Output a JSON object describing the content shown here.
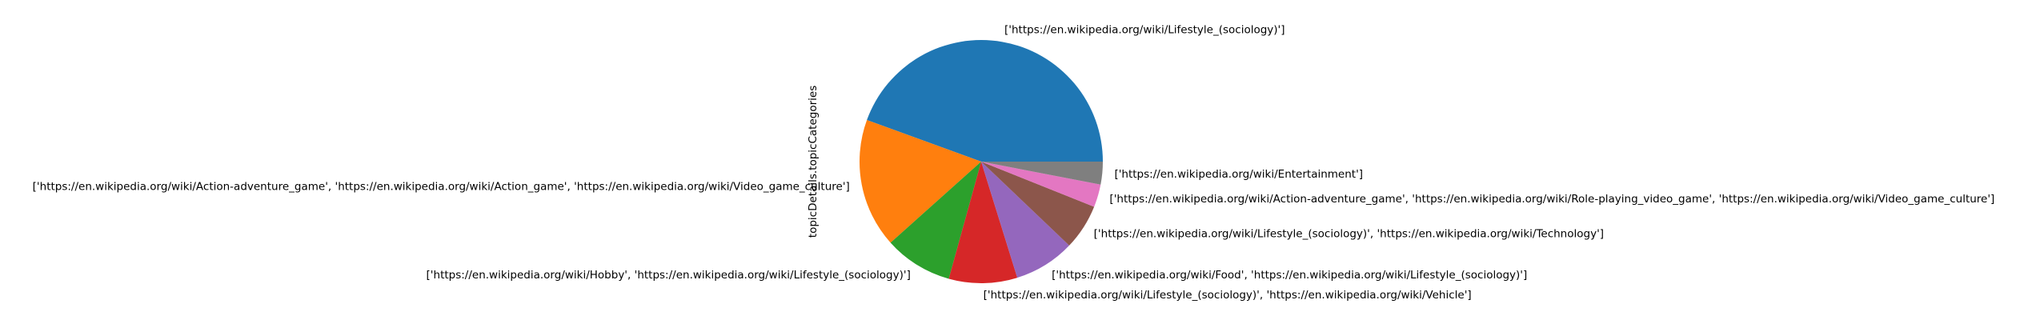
{
  "chart_data": {
    "type": "pie",
    "ylabel": "topicDetails.topicCategories",
    "start_angle_deg": 0,
    "direction": "counterclockwise",
    "slices": [
      {
        "label": "['https://en.wikipedia.org/wiki/Lifestyle_(sociology)']",
        "value": 44,
        "color": "#1f77b4"
      },
      {
        "label": "['https://en.wikipedia.org/wiki/Action-adventure_game', 'https://en.wikipedia.org/wiki/Action_game', 'https://en.wikipedia.org/wiki/Video_game_culture']",
        "value": 17,
        "color": "#ff7f0e"
      },
      {
        "label": "['https://en.wikipedia.org/wiki/Hobby', 'https://en.wikipedia.org/wiki/Lifestyle_(sociology)']",
        "value": 9,
        "color": "#2ca02c"
      },
      {
        "label": "['https://en.wikipedia.org/wiki/Lifestyle_(sociology)', 'https://en.wikipedia.org/wiki/Vehicle']",
        "value": 9,
        "color": "#d62728"
      },
      {
        "label": "['https://en.wikipedia.org/wiki/Food', 'https://en.wikipedia.org/wiki/Lifestyle_(sociology)']",
        "value": 8,
        "color": "#9467bd"
      },
      {
        "label": "['https://en.wikipedia.org/wiki/Lifestyle_(sociology)', 'https://en.wikipedia.org/wiki/Technology']",
        "value": 6,
        "color": "#8c564b"
      },
      {
        "label": "['https://en.wikipedia.org/wiki/Action-adventure_game', 'https://en.wikipedia.org/wiki/Role-playing_video_game', 'https://en.wikipedia.org/wiki/Video_game_culture']",
        "value": 3,
        "color": "#e377c2"
      },
      {
        "label": "['https://en.wikipedia.org/wiki/Entertainment']",
        "value": 3,
        "color": "#7f7f7f"
      }
    ]
  }
}
